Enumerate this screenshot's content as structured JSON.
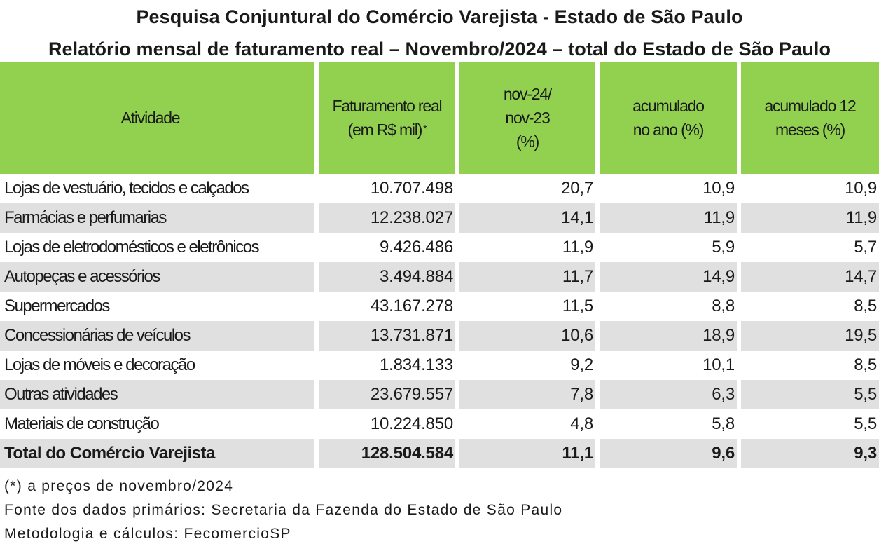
{
  "title_line1": "Pesquisa Conjuntural do Comércio Varejista - Estado de São Paulo",
  "title_line2": "Relatório mensal de faturamento real – Novembro/2024 – total do Estado de São Paulo",
  "headers": {
    "atividade": "Atividade",
    "faturamento_line1": "Faturamento real",
    "faturamento_line2": "(em R$ mil)",
    "faturamento_sup": "*",
    "nov_line1": "nov-24/",
    "nov_line2": "nov-23",
    "nov_line3": "(%)",
    "acum_ano_line1": "acumulado",
    "acum_ano_line2": "no ano (%)",
    "acum12_line1": "acumulado 12",
    "acum12_line2": "meses (%)"
  },
  "rows": [
    {
      "atividade": "Lojas de vestuário, tecidos e calçados",
      "faturamento": "10.707.498",
      "nov": "20,7",
      "acum_ano": "10,9",
      "acum12": "10,9"
    },
    {
      "atividade": "Farmácias e perfumarias",
      "faturamento": "12.238.027",
      "nov": "14,1",
      "acum_ano": "11,9",
      "acum12": "11,9"
    },
    {
      "atividade": "Lojas de eletrodomésticos e eletrônicos",
      "faturamento": "9.426.486",
      "nov": "11,9",
      "acum_ano": "5,9",
      "acum12": "5,7"
    },
    {
      "atividade": "Autopeças e acessórios",
      "faturamento": "3.494.884",
      "nov": "11,7",
      "acum_ano": "14,9",
      "acum12": "14,7"
    },
    {
      "atividade": "Supermercados",
      "faturamento": "43.167.278",
      "nov": "11,5",
      "acum_ano": "8,8",
      "acum12": "8,5"
    },
    {
      "atividade": "Concessionárias de veículos",
      "faturamento": "13.731.871",
      "nov": "10,6",
      "acum_ano": "18,9",
      "acum12": "19,5"
    },
    {
      "atividade": "Lojas de móveis e decoração",
      "faturamento": "1.834.133",
      "nov": "9,2",
      "acum_ano": "10,1",
      "acum12": "8,5"
    },
    {
      "atividade": "Outras atividades",
      "faturamento": "23.679.557",
      "nov": "7,8",
      "acum_ano": "6,3",
      "acum12": "5,5"
    },
    {
      "atividade": "Materiais de construção",
      "faturamento": "10.224.850",
      "nov": "4,8",
      "acum_ano": "5,8",
      "acum12": "5,5"
    }
  ],
  "total": {
    "atividade": "Total do Comércio Varejista",
    "faturamento": "128.504.584",
    "nov": "11,1",
    "acum_ano": "9,6",
    "acum12": "9,3"
  },
  "notes": {
    "note1": "(*) a preços de novembro/2024",
    "note2": "Fonte dos dados primários: Secretaria da Fazenda do Estado de São Paulo",
    "note3": "Metodologia e cálculos: FecomercioSP"
  },
  "colors": {
    "header_bg": "#92d050",
    "shade_bg": "#e0e0e0"
  }
}
